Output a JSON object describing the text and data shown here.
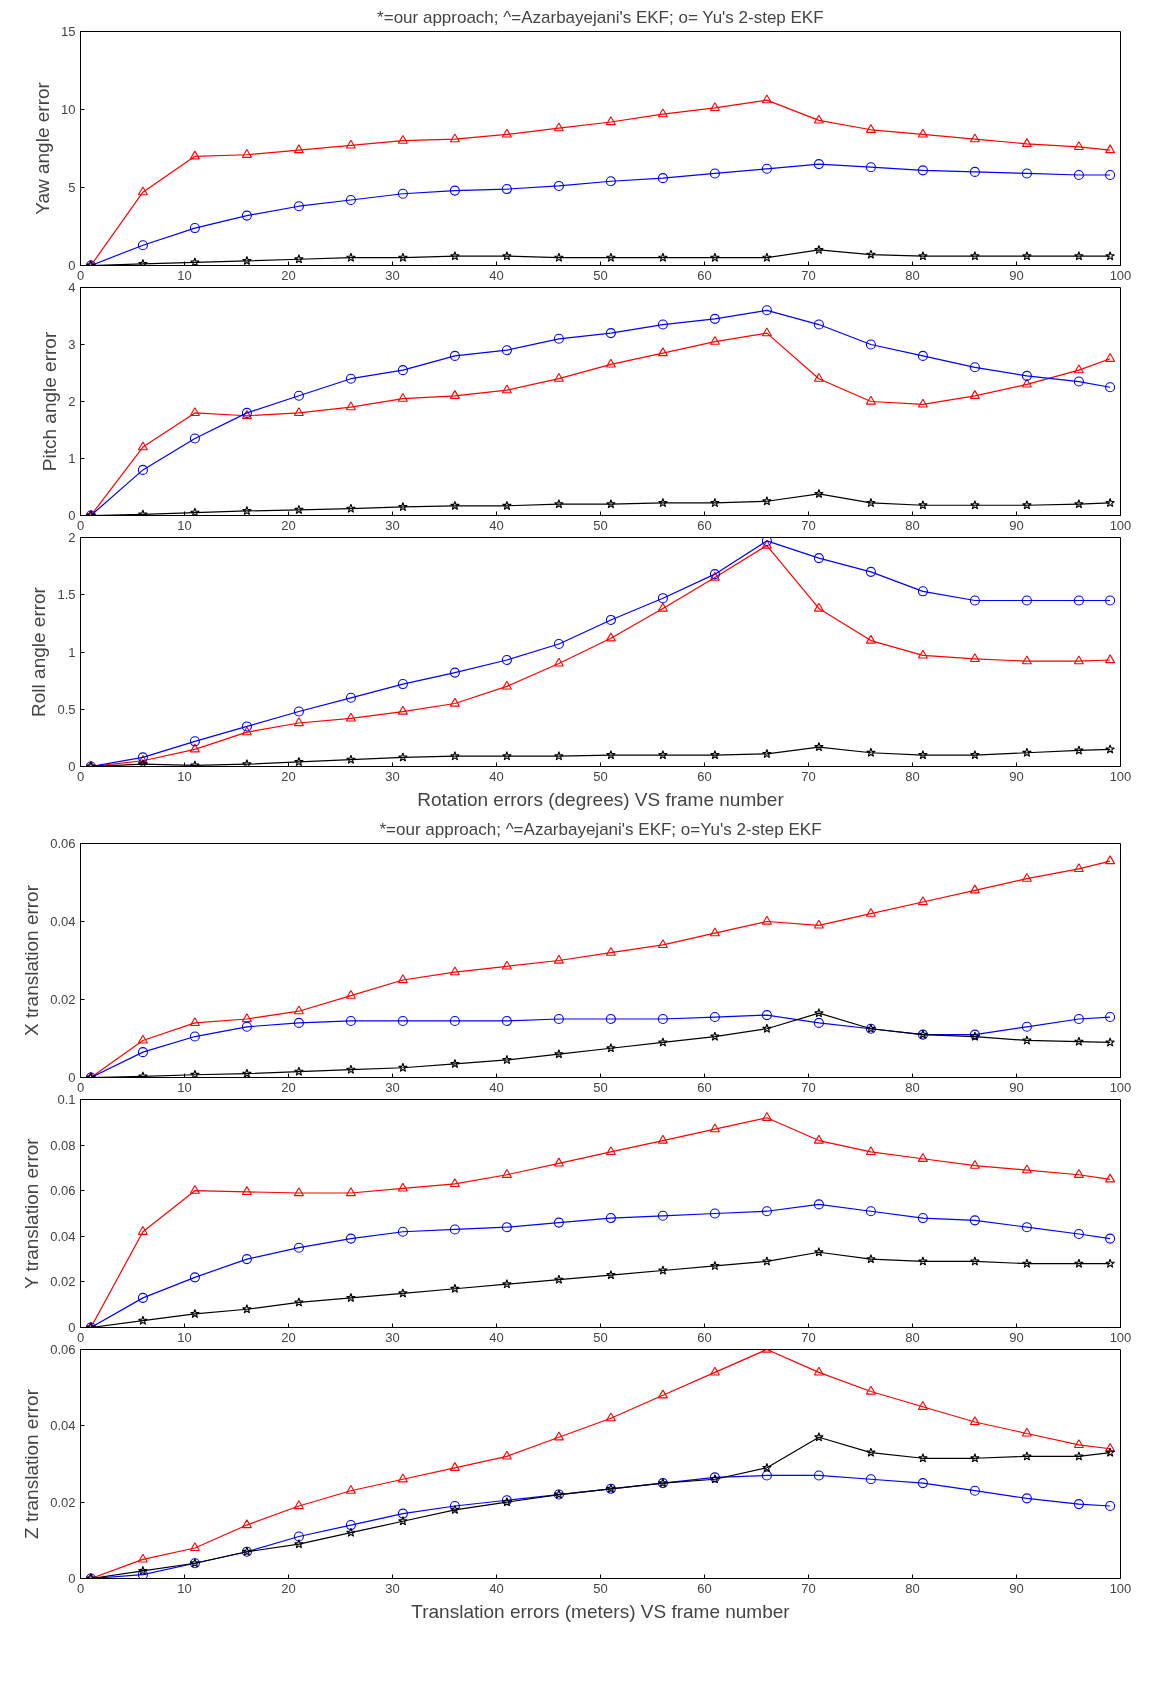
{
  "chart_data": [
    {
      "type": "line",
      "title": "*=our approach; ^=Azarbayejani's EKF; o= Yu's 2-step EKF",
      "ylabel": "Yaw angle error",
      "x": [
        1,
        6,
        11,
        16,
        21,
        26,
        31,
        36,
        41,
        46,
        51,
        56,
        61,
        66,
        71,
        76,
        81,
        86,
        91,
        96,
        99
      ],
      "xlim": [
        0,
        100
      ],
      "xticks": [
        0,
        10,
        20,
        30,
        40,
        50,
        60,
        70,
        80,
        90,
        100
      ],
      "ylim": [
        0,
        15
      ],
      "yticks": [
        0,
        5,
        10,
        15
      ],
      "grid": false,
      "series": [
        {
          "color": "#ff0000",
          "marker": "triangle",
          "values": [
            0,
            4.7,
            7.0,
            7.1,
            7.4,
            7.7,
            8.0,
            8.1,
            8.4,
            8.8,
            9.2,
            9.7,
            10.1,
            10.6,
            9.3,
            8.7,
            8.4,
            8.1,
            7.8,
            7.6,
            7.4
          ]
        },
        {
          "color": "#0000ff",
          "marker": "circle",
          "values": [
            0,
            1.3,
            2.4,
            3.2,
            3.8,
            4.2,
            4.6,
            4.8,
            4.9,
            5.1,
            5.4,
            5.6,
            5.9,
            6.2,
            6.5,
            6.3,
            6.1,
            6.0,
            5.9,
            5.8,
            5.8
          ]
        },
        {
          "color": "#000000",
          "marker": "star",
          "values": [
            0,
            0.1,
            0.2,
            0.3,
            0.4,
            0.5,
            0.5,
            0.6,
            0.6,
            0.5,
            0.5,
            0.5,
            0.5,
            0.5,
            1.0,
            0.7,
            0.6,
            0.6,
            0.6,
            0.6,
            0.6
          ]
        }
      ]
    },
    {
      "type": "line",
      "ylabel": "Pitch angle error",
      "x": [
        1,
        6,
        11,
        16,
        21,
        26,
        31,
        36,
        41,
        46,
        51,
        56,
        61,
        66,
        71,
        76,
        81,
        86,
        91,
        96,
        99
      ],
      "xlim": [
        0,
        100
      ],
      "xticks": [
        0,
        10,
        20,
        30,
        40,
        50,
        60,
        70,
        80,
        90,
        100
      ],
      "ylim": [
        0,
        4
      ],
      "yticks": [
        0,
        1,
        2,
        3,
        4
      ],
      "grid": false,
      "series": [
        {
          "color": "#ff0000",
          "marker": "triangle",
          "values": [
            0,
            1.2,
            1.8,
            1.75,
            1.8,
            1.9,
            2.05,
            2.1,
            2.2,
            2.4,
            2.65,
            2.85,
            3.05,
            3.2,
            2.4,
            2.0,
            1.95,
            2.1,
            2.3,
            2.55,
            2.75
          ]
        },
        {
          "color": "#0000ff",
          "marker": "circle",
          "values": [
            0,
            0.8,
            1.35,
            1.8,
            2.1,
            2.4,
            2.55,
            2.8,
            2.9,
            3.1,
            3.2,
            3.35,
            3.45,
            3.6,
            3.35,
            3.0,
            2.8,
            2.6,
            2.45,
            2.35,
            2.25
          ]
        },
        {
          "color": "#000000",
          "marker": "star",
          "values": [
            0,
            0.02,
            0.05,
            0.08,
            0.1,
            0.12,
            0.15,
            0.17,
            0.17,
            0.2,
            0.2,
            0.22,
            0.22,
            0.25,
            0.38,
            0.22,
            0.18,
            0.18,
            0.18,
            0.2,
            0.22
          ]
        }
      ]
    },
    {
      "type": "line",
      "ylabel": "Roll angle error",
      "xlabel": "Rotation errors (degrees) VS frame number",
      "x": [
        1,
        6,
        11,
        16,
        21,
        26,
        31,
        36,
        41,
        46,
        51,
        56,
        61,
        66,
        71,
        76,
        81,
        86,
        91,
        96,
        99
      ],
      "xlim": [
        0,
        100
      ],
      "xticks": [
        0,
        10,
        20,
        30,
        40,
        50,
        60,
        70,
        80,
        90,
        100
      ],
      "ylim": [
        0,
        2
      ],
      "yticks": [
        0,
        0.5,
        1,
        1.5,
        2
      ],
      "grid": false,
      "series": [
        {
          "color": "#ff0000",
          "marker": "triangle",
          "values": [
            0,
            0.05,
            0.15,
            0.3,
            0.38,
            0.42,
            0.48,
            0.55,
            0.7,
            0.9,
            1.12,
            1.38,
            1.65,
            1.93,
            1.38,
            1.1,
            0.97,
            0.94,
            0.92,
            0.92,
            0.93
          ]
        },
        {
          "color": "#0000ff",
          "marker": "circle",
          "values": [
            0,
            0.08,
            0.22,
            0.35,
            0.48,
            0.6,
            0.72,
            0.82,
            0.93,
            1.07,
            1.28,
            1.47,
            1.68,
            1.97,
            1.82,
            1.7,
            1.53,
            1.45,
            1.45,
            1.45,
            1.45
          ]
        },
        {
          "color": "#000000",
          "marker": "star",
          "values": [
            0,
            0.02,
            0.01,
            0.02,
            0.04,
            0.06,
            0.08,
            0.09,
            0.09,
            0.09,
            0.1,
            0.1,
            0.1,
            0.11,
            0.17,
            0.12,
            0.1,
            0.1,
            0.12,
            0.14,
            0.15
          ]
        }
      ]
    },
    {
      "type": "line",
      "title": "*=our approach; ^=Azarbayejani's EKF; o=Yu's 2-step EKF",
      "ylabel": "X translation error",
      "x": [
        1,
        6,
        11,
        16,
        21,
        26,
        31,
        36,
        41,
        46,
        51,
        56,
        61,
        66,
        71,
        76,
        81,
        86,
        91,
        96,
        99
      ],
      "xlim": [
        0,
        100
      ],
      "xticks": [
        0,
        10,
        20,
        30,
        40,
        50,
        60,
        70,
        80,
        90,
        100
      ],
      "ylim": [
        0,
        0.06
      ],
      "yticks": [
        0,
        0.02,
        0.04,
        0.06
      ],
      "grid": false,
      "series": [
        {
          "color": "#ff0000",
          "marker": "triangle",
          "values": [
            0,
            0.0095,
            0.014,
            0.015,
            0.017,
            0.021,
            0.025,
            0.027,
            0.0285,
            0.03,
            0.032,
            0.034,
            0.037,
            0.04,
            0.039,
            0.042,
            0.045,
            0.048,
            0.051,
            0.0535,
            0.0555
          ]
        },
        {
          "color": "#0000ff",
          "marker": "circle",
          "values": [
            0,
            0.0065,
            0.0105,
            0.013,
            0.014,
            0.0145,
            0.0145,
            0.0145,
            0.0145,
            0.015,
            0.015,
            0.015,
            0.0155,
            0.016,
            0.014,
            0.0125,
            0.011,
            0.011,
            0.013,
            0.015,
            0.0155
          ]
        },
        {
          "color": "#000000",
          "marker": "star",
          "values": [
            0,
            0.0003,
            0.0007,
            0.001,
            0.0015,
            0.002,
            0.0025,
            0.0035,
            0.0045,
            0.006,
            0.0075,
            0.009,
            0.0105,
            0.0125,
            0.0165,
            0.0125,
            0.011,
            0.0105,
            0.0095,
            0.0092,
            0.009
          ]
        }
      ]
    },
    {
      "type": "line",
      "ylabel": "Y translation error",
      "x": [
        1,
        6,
        11,
        16,
        21,
        26,
        31,
        36,
        41,
        46,
        51,
        56,
        61,
        66,
        71,
        76,
        81,
        86,
        91,
        96,
        99
      ],
      "xlim": [
        0,
        100
      ],
      "xticks": [
        0,
        10,
        20,
        30,
        40,
        50,
        60,
        70,
        80,
        90,
        100
      ],
      "ylim": [
        0,
        0.1
      ],
      "yticks": [
        0,
        0.02,
        0.04,
        0.06,
        0.08,
        0.1
      ],
      "grid": false,
      "series": [
        {
          "color": "#ff0000",
          "marker": "triangle",
          "values": [
            0,
            0.042,
            0.06,
            0.0595,
            0.059,
            0.059,
            0.061,
            0.063,
            0.067,
            0.072,
            0.077,
            0.082,
            0.087,
            0.092,
            0.082,
            0.077,
            0.074,
            0.071,
            0.069,
            0.067,
            0.065
          ]
        },
        {
          "color": "#0000ff",
          "marker": "circle",
          "values": [
            0,
            0.013,
            0.022,
            0.03,
            0.035,
            0.039,
            0.042,
            0.043,
            0.044,
            0.046,
            0.048,
            0.049,
            0.05,
            0.051,
            0.054,
            0.051,
            0.048,
            0.047,
            0.044,
            0.041,
            0.039
          ]
        },
        {
          "color": "#000000",
          "marker": "star",
          "values": [
            0,
            0.003,
            0.006,
            0.008,
            0.011,
            0.013,
            0.015,
            0.017,
            0.019,
            0.021,
            0.023,
            0.025,
            0.027,
            0.029,
            0.033,
            0.03,
            0.029,
            0.029,
            0.028,
            0.028,
            0.028
          ]
        }
      ]
    },
    {
      "type": "line",
      "ylabel": "Z translation error",
      "xlabel": "Translation errors (meters) VS frame number",
      "x": [
        1,
        6,
        11,
        16,
        21,
        26,
        31,
        36,
        41,
        46,
        51,
        56,
        61,
        66,
        71,
        76,
        81,
        86,
        91,
        96,
        99
      ],
      "xlim": [
        0,
        100
      ],
      "xticks": [
        0,
        10,
        20,
        30,
        40,
        50,
        60,
        70,
        80,
        90,
        100
      ],
      "ylim": [
        0,
        0.06
      ],
      "yticks": [
        0,
        0.02,
        0.04,
        0.06
      ],
      "grid": false,
      "series": [
        {
          "color": "#ff0000",
          "marker": "triangle",
          "values": [
            0,
            0.005,
            0.008,
            0.014,
            0.019,
            0.023,
            0.026,
            0.029,
            0.032,
            0.037,
            0.042,
            0.048,
            0.054,
            0.06,
            0.054,
            0.049,
            0.045,
            0.041,
            0.038,
            0.035,
            0.034
          ]
        },
        {
          "color": "#0000ff",
          "marker": "circle",
          "values": [
            0,
            0.001,
            0.004,
            0.007,
            0.011,
            0.014,
            0.017,
            0.019,
            0.0205,
            0.022,
            0.0235,
            0.025,
            0.0265,
            0.027,
            0.027,
            0.026,
            0.025,
            0.023,
            0.021,
            0.0195,
            0.019
          ]
        },
        {
          "color": "#000000",
          "marker": "star",
          "values": [
            0,
            0.002,
            0.004,
            0.007,
            0.009,
            0.012,
            0.015,
            0.018,
            0.02,
            0.022,
            0.0235,
            0.025,
            0.026,
            0.029,
            0.037,
            0.033,
            0.0315,
            0.0315,
            0.032,
            0.032,
            0.033
          ]
        }
      ]
    }
  ]
}
